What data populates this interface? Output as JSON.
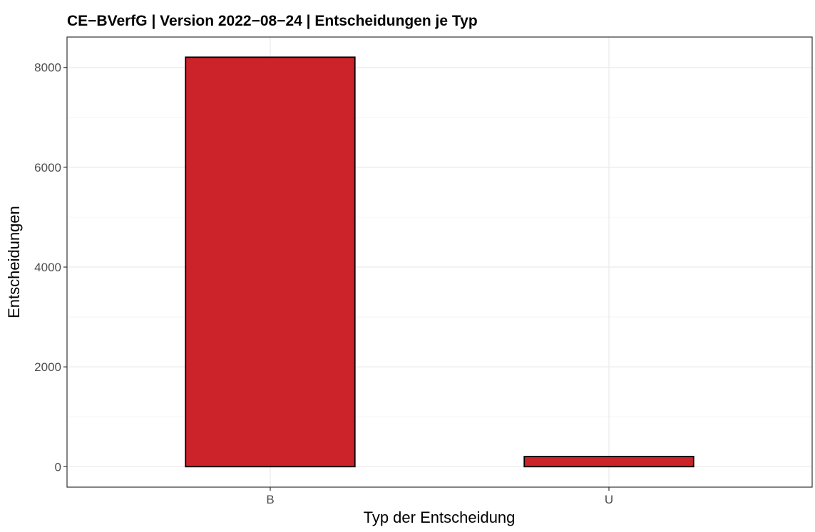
{
  "chart_data": {
    "type": "bar",
    "title": "CE−BVerfG | Version 2022−08−24 | Entscheidungen je Typ",
    "xlabel": "Typ der Entscheidung",
    "ylabel": "Entscheidungen",
    "categories": [
      "B",
      "U"
    ],
    "values": [
      8206,
      205
    ],
    "ylim": [
      -410,
      8610
    ],
    "yticks": [
      0,
      2000,
      4000,
      6000,
      8000
    ],
    "grid": true,
    "legend": "none",
    "colors": {
      "bar_fill": "#CC2229",
      "bar_stroke": "#000000",
      "grid_major": "#EBEBEB",
      "grid_minor": "#F5F5F5",
      "panel_border": "#333333",
      "tick_label": "#4D4D4D"
    }
  }
}
